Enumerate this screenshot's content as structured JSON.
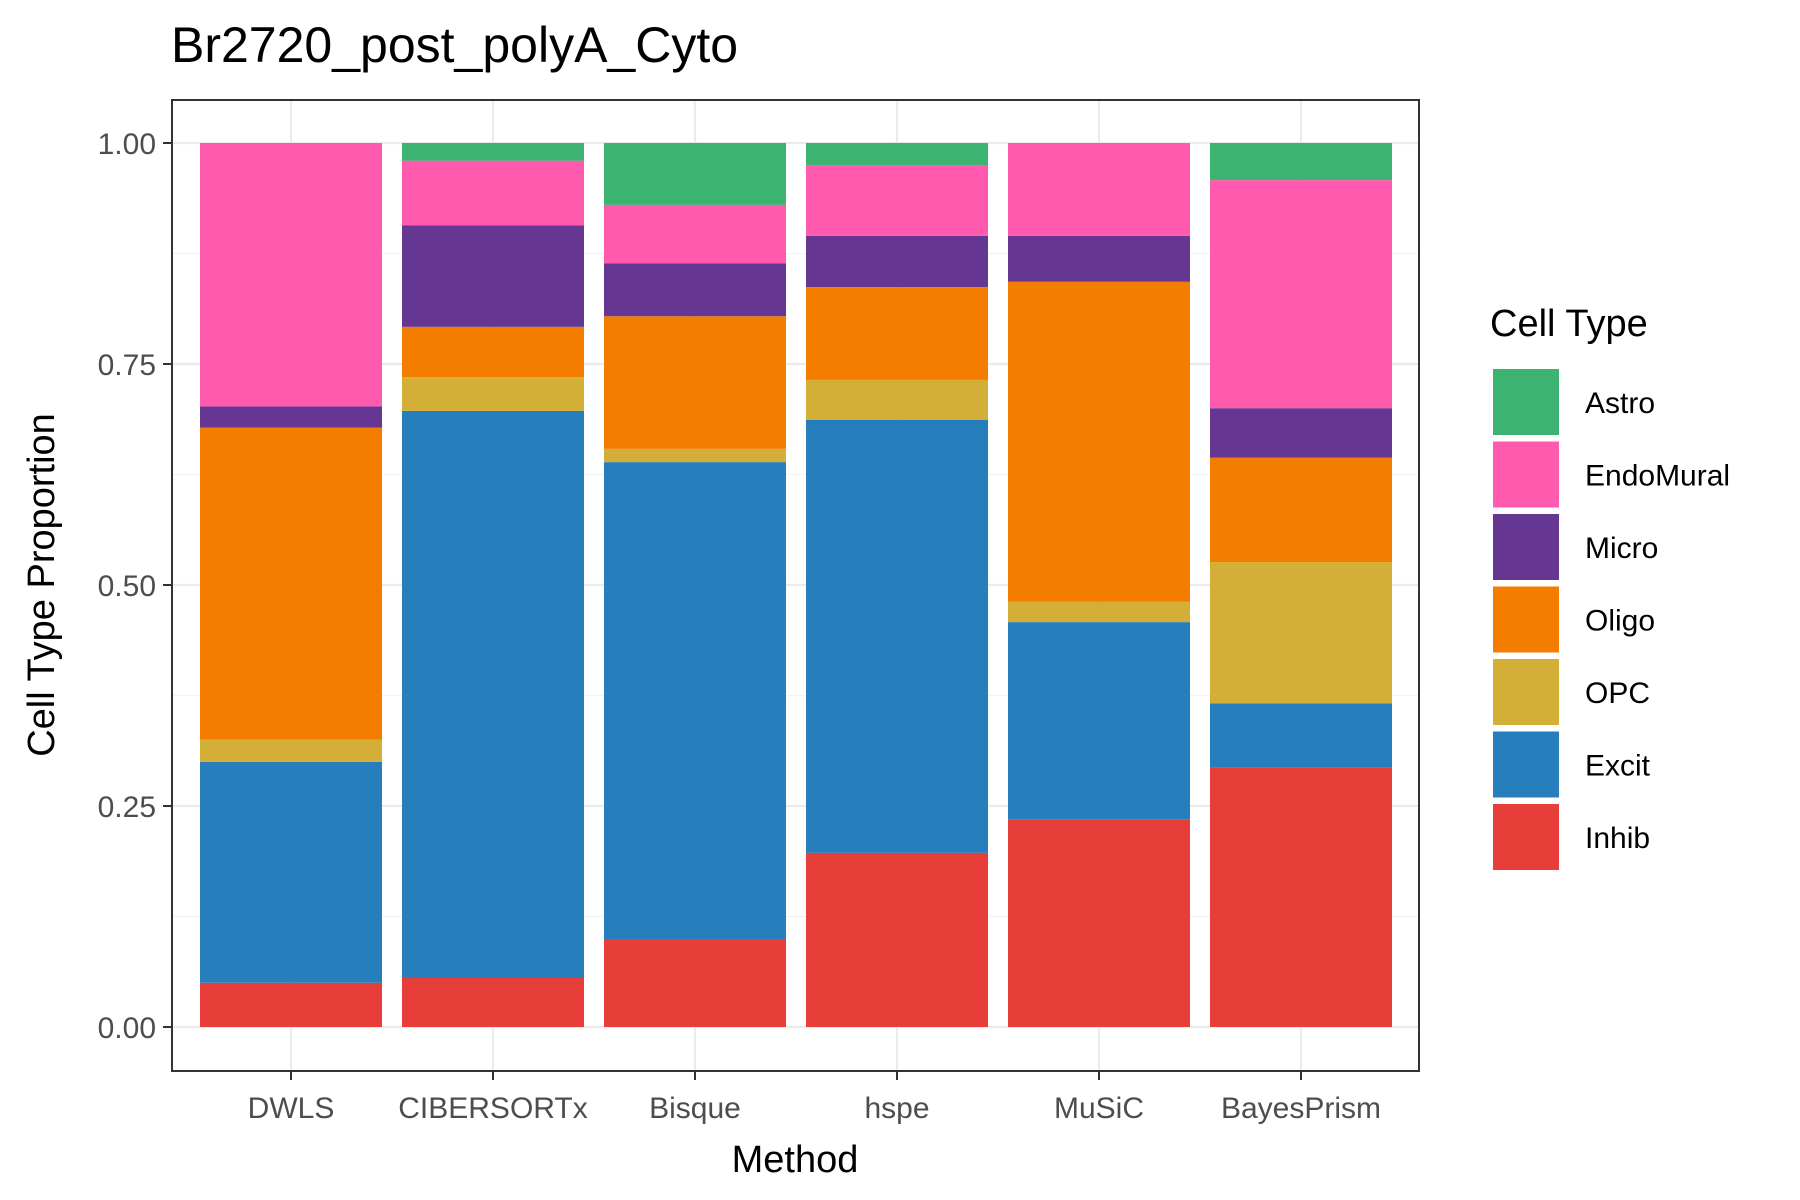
{
  "chart_data": {
    "type": "bar",
    "stacked": true,
    "title": "Br2720_post_polyA_Cyto",
    "xlabel": "Method",
    "ylabel": "Cell Type Proportion",
    "ylim": [
      0,
      1
    ],
    "y_ticks": [
      "0.00",
      "0.25",
      "0.50",
      "0.75",
      "1.00"
    ],
    "y_tick_values": [
      0,
      0.25,
      0.5,
      0.75,
      1.0
    ],
    "grid": true,
    "legend": {
      "title": "Cell Type",
      "placement": "right"
    },
    "categories": [
      "DWLS",
      "CIBERSORTx",
      "Bisque",
      "hspe",
      "MuSiC",
      "BayesPrism"
    ],
    "stack_order_bottom_to_top": [
      "Inhib",
      "Excit",
      "OPC",
      "Oligo",
      "Micro",
      "EndoMural",
      "Astro"
    ],
    "series": [
      {
        "name": "Astro",
        "color": "#3CB371",
        "values": [
          0.0,
          0.02,
          0.07,
          0.025,
          0.0,
          0.042
        ]
      },
      {
        "name": "EndoMural",
        "color": "#FF5AAE",
        "values": [
          0.298,
          0.073,
          0.066,
          0.08,
          0.105,
          0.258
        ]
      },
      {
        "name": "Micro",
        "color": "#663792",
        "values": [
          0.024,
          0.115,
          0.06,
          0.058,
          0.052,
          0.056
        ]
      },
      {
        "name": "Oligo",
        "color": "#F47D00",
        "values": [
          0.353,
          0.057,
          0.15,
          0.105,
          0.362,
          0.118
        ]
      },
      {
        "name": "OPC",
        "color": "#D4AF37",
        "values": [
          0.025,
          0.038,
          0.015,
          0.045,
          0.023,
          0.16
        ]
      },
      {
        "name": "Excit",
        "color": "#277EBD",
        "values": [
          0.25,
          0.641,
          0.54,
          0.49,
          0.223,
          0.072
        ]
      },
      {
        "name": "Inhib",
        "color": "#E83E3A",
        "values": [
          0.05,
          0.056,
          0.099,
          0.197,
          0.235,
          0.294
        ]
      }
    ]
  }
}
